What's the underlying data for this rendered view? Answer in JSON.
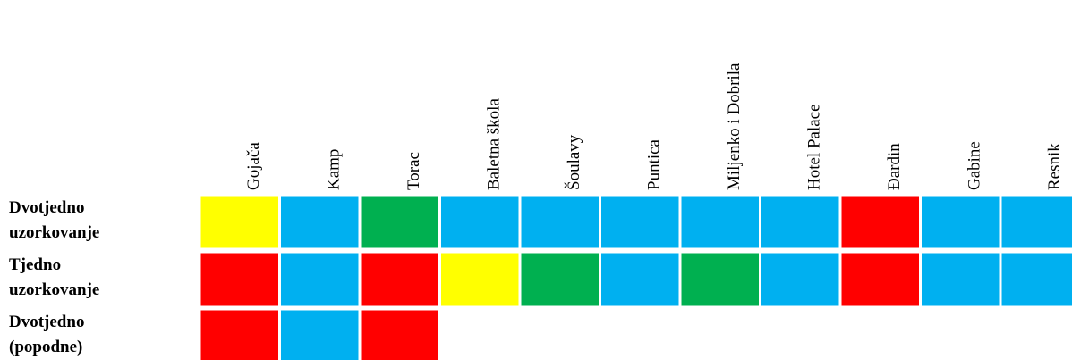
{
  "chart_data": {
    "type": "heatmap",
    "columns": [
      "Gojača",
      "Kamp",
      "Torac",
      "Baletna škola",
      "Šoulavy",
      "Puntica",
      "Miljenko i Dobrila",
      "Hotel Palace",
      "Đardin",
      "Gabine",
      "Resnik"
    ],
    "rows": [
      {
        "label_lines": [
          "Dvotjedno",
          "uzorkovanje"
        ],
        "cells": [
          "yellow",
          "blue",
          "green",
          "blue",
          "blue",
          "blue",
          "blue",
          "blue",
          "red",
          "blue",
          "blue"
        ]
      },
      {
        "label_lines": [
          "Tjedno",
          "uzorkovanje"
        ],
        "cells": [
          "red",
          "blue",
          "red",
          "yellow",
          "green",
          "blue",
          "green",
          "blue",
          "red",
          "blue",
          "blue"
        ]
      },
      {
        "label_lines": [
          "Dvotjedno",
          "(popodne)"
        ],
        "cells": [
          "red",
          "blue",
          "red",
          null,
          null,
          null,
          null,
          null,
          null,
          null,
          null
        ]
      }
    ],
    "colors": {
      "yellow": "#FFFF00",
      "blue": "#00B0F0",
      "green": "#00B050",
      "red": "#FF0000"
    }
  }
}
